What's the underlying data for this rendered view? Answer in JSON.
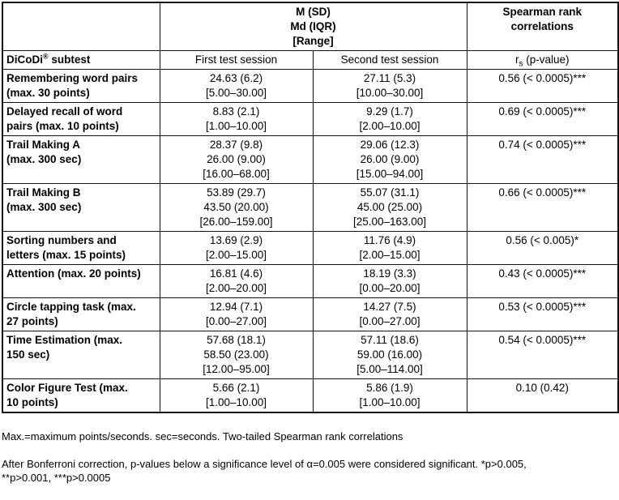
{
  "table": {
    "header": {
      "span_title": "M (SD)\nMd (IQR)\n[Range]",
      "spearman_title": "Spearman rank\ncorrelations",
      "subtest_col": {
        "base": "DiCoDi",
        "reg": "®",
        "rest": " subtest"
      },
      "first_session": "First test session",
      "second_session": "Second test session",
      "rs_label": {
        "base": "r",
        "sub": "s",
        "rest": " (p-value)"
      }
    },
    "rows": [
      {
        "subtest": "Remembering word pairs\n(max. 30 points)",
        "first": "24.63 (6.2)\n[5.00–30.00]",
        "second": "27.11 (5.3)\n[10.00–30.00]",
        "rs": "0.56 (< 0.0005)***"
      },
      {
        "subtest": "Delayed recall of word\npairs (max. 10 points)",
        "first": "8.83 (2.1)\n[1.00–10.00]",
        "second": "9.29 (1.7)\n[2.00–10.00]",
        "rs": "0.69 (< 0.0005)***"
      },
      {
        "subtest": "Trail Making A\n(max. 300 sec)",
        "first": "28.37 (9.8)\n26.00 (9.00)\n[16.00–68.00]",
        "second": "29.06 (12.3)\n26.00 (9.00)\n[15.00–94.00]",
        "rs": "0.74 (< 0.0005)***"
      },
      {
        "subtest": "Trail Making B\n(max. 300 sec)",
        "first": "53.89 (29.7)\n43.50 (20.00)\n[26.00–159.00]",
        "second": "55.07 (31.1)\n45.00 (25.00)\n[25.00–163.00]",
        "rs": "0.66 (< 0.0005)***"
      },
      {
        "subtest": "Sorting numbers and\nletters (max. 15 points)",
        "first": "13.69 (2.9)\n[2.00–15.00]",
        "second": "11.76 (4.9)\n[2.00–15.00]",
        "rs": "0.56 (< 0.005)*"
      },
      {
        "subtest": "Attention (max. 20 points)",
        "first": "16.81 (4.6)\n[2.00–20.00]",
        "second": "18.19 (3.3)\n[0.00–20.00]",
        "rs": "0.43 (< 0.0005)***"
      },
      {
        "subtest": "Circle tapping task (max.\n27 points)",
        "first": "12.94 (7.1)\n[0.00–27.00]",
        "second": "14.27 (7.5)\n[0.00–27.00]",
        "rs": "0.53 (< 0.0005)***"
      },
      {
        "subtest": "Time Estimation (max.\n150 sec)",
        "first": "57.68 (18.1)\n58.50 (23.00)\n[12.00–95.00]",
        "second": "57.11 (18.6)\n59.00 (16.00)\n[5.00–114.00]",
        "rs": "0.54 (< 0.0005)***"
      },
      {
        "subtest": "Color Figure Test (max.\n10 points)",
        "first": "5.66 (2.1)\n[1.00–10.00]",
        "second": "5.86 (1.9)\n[1.00–10.00]",
        "rs": "0.10 (0.42)"
      }
    ]
  },
  "notes": [
    "Max.=maximum points/seconds. sec=seconds. Two-tailed Spearman rank correlations",
    "After Bonferroni correction, p-values below a significance level of α=0.005 were considered significant. *p>0.005,\n**p>0.001, ***p>0.0005"
  ]
}
